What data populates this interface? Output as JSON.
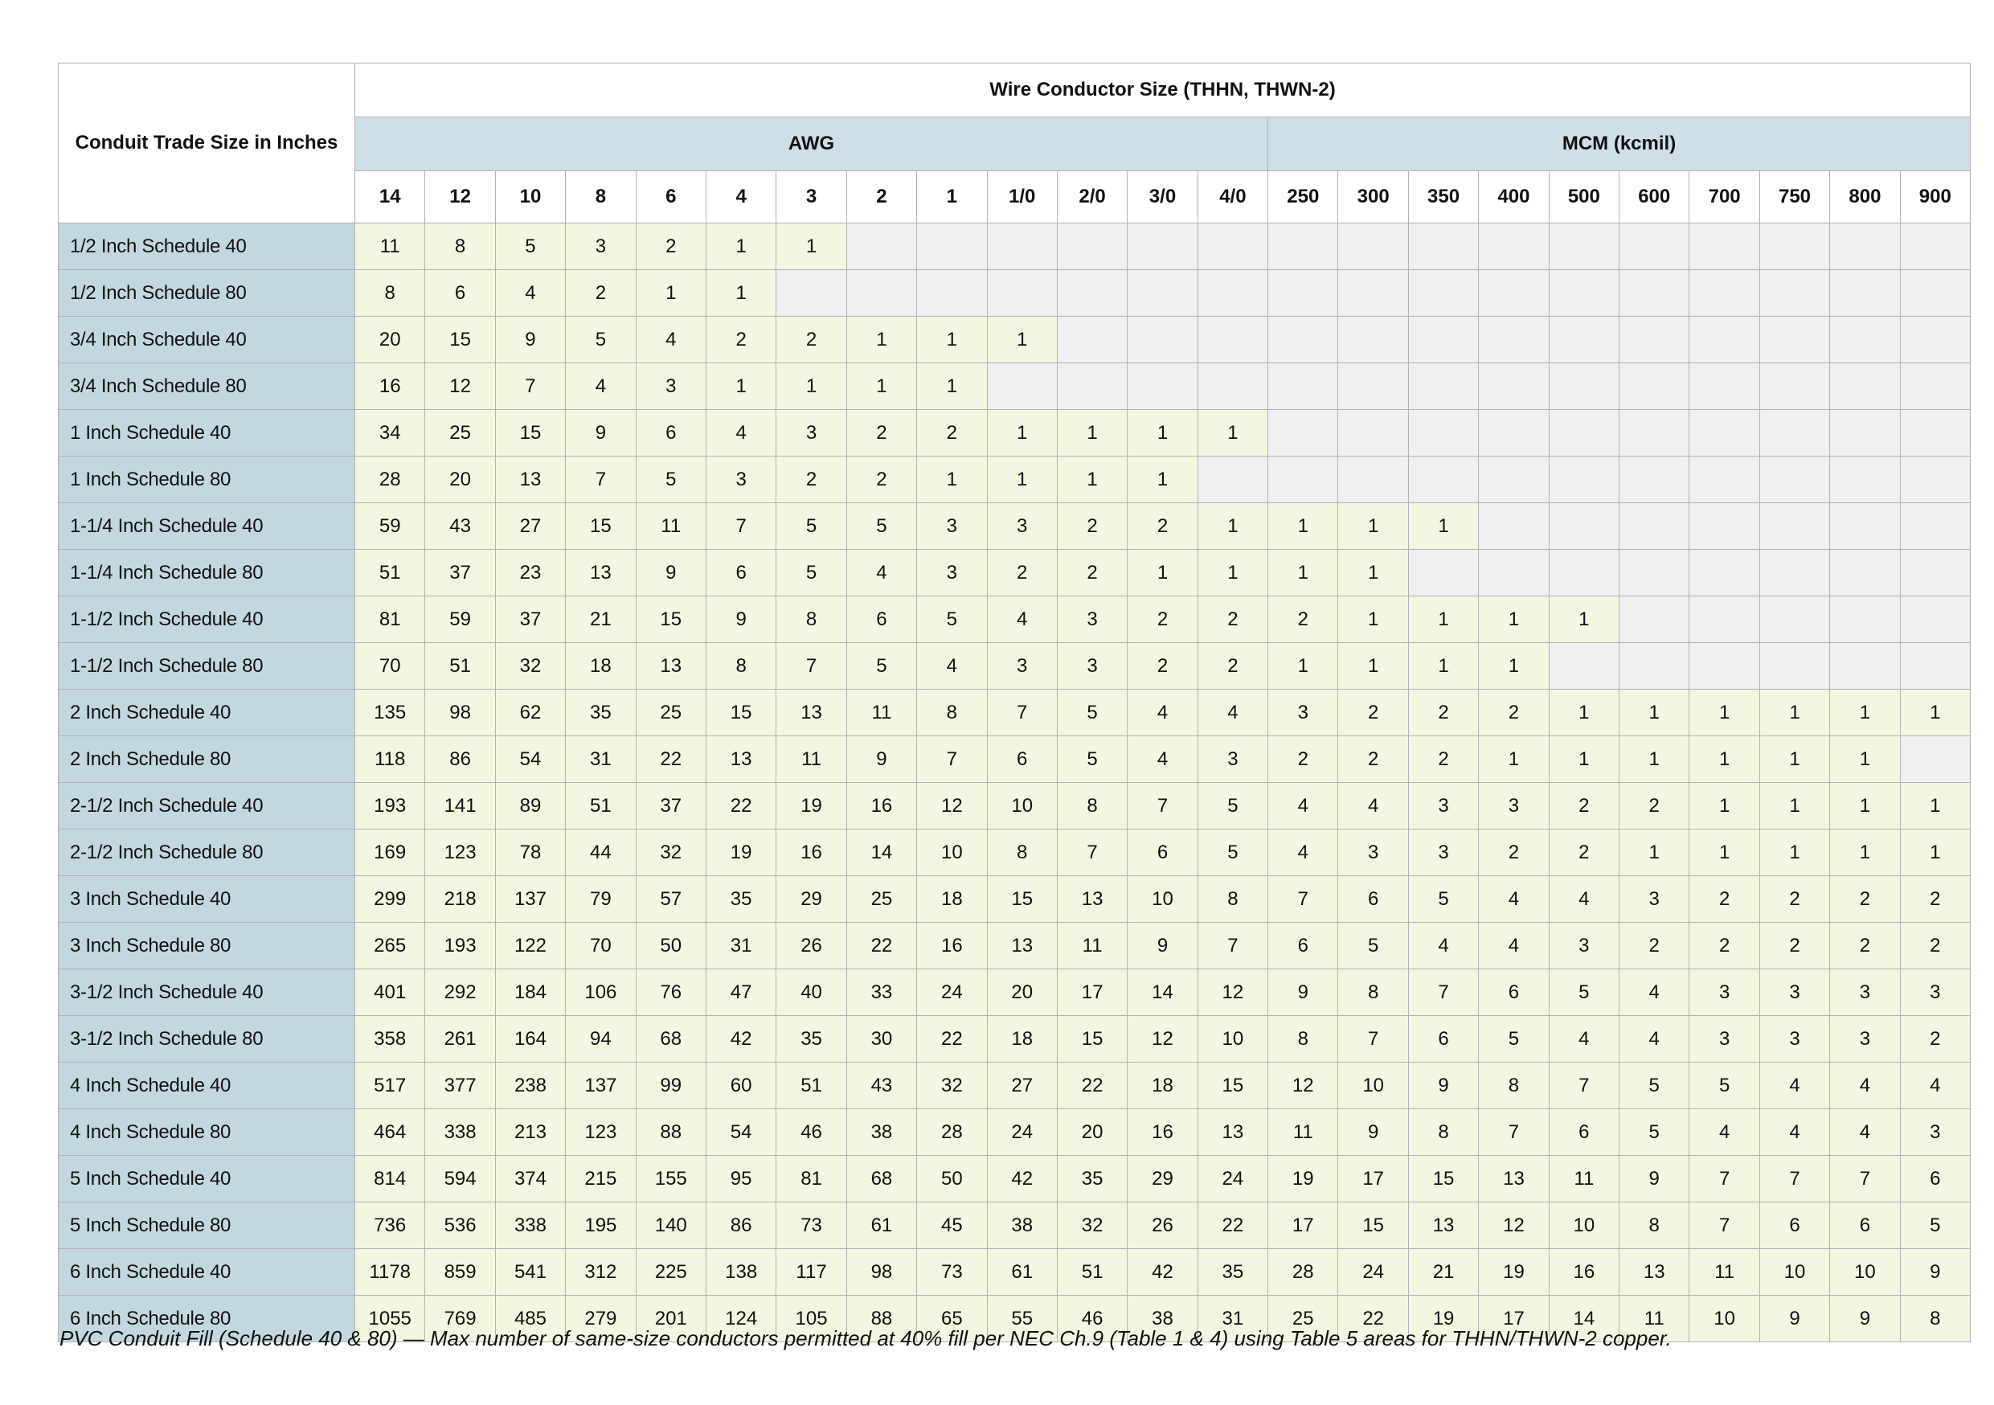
{
  "table": {
    "corner_header": "Conduit Trade Size in Inches",
    "top_header": "Wire Conductor Size (THHN, THWN-2)",
    "groups": [
      {
        "label": "AWG",
        "span": 13
      },
      {
        "label": "MCM (kcmil)",
        "span": 10
      }
    ],
    "size_headers": [
      "14",
      "12",
      "10",
      "8",
      "6",
      "4",
      "3",
      "2",
      "1",
      "1/0",
      "2/0",
      "3/0",
      "4/0",
      "250",
      "300",
      "350",
      "400",
      "500",
      "600",
      "700",
      "750",
      "800",
      "900"
    ],
    "rows": [
      {
        "label": "1/2 Inch Schedule 40",
        "values": [
          11,
          8,
          5,
          3,
          2,
          1,
          1,
          null,
          null,
          null,
          null,
          null,
          null,
          null,
          null,
          null,
          null,
          null,
          null,
          null,
          null,
          null,
          null
        ]
      },
      {
        "label": "1/2 Inch Schedule 80",
        "values": [
          8,
          6,
          4,
          2,
          1,
          1,
          null,
          null,
          null,
          null,
          null,
          null,
          null,
          null,
          null,
          null,
          null,
          null,
          null,
          null,
          null,
          null,
          null
        ]
      },
      {
        "label": "3/4 Inch Schedule 40",
        "values": [
          20,
          15,
          9,
          5,
          4,
          2,
          2,
          1,
          1,
          1,
          null,
          null,
          null,
          null,
          null,
          null,
          null,
          null,
          null,
          null,
          null,
          null,
          null
        ]
      },
      {
        "label": "3/4 Inch Schedule 80",
        "values": [
          16,
          12,
          7,
          4,
          3,
          1,
          1,
          1,
          1,
          null,
          null,
          null,
          null,
          null,
          null,
          null,
          null,
          null,
          null,
          null,
          null,
          null,
          null
        ]
      },
      {
        "label": "1 Inch Schedule 40",
        "values": [
          34,
          25,
          15,
          9,
          6,
          4,
          3,
          2,
          2,
          1,
          1,
          1,
          1,
          null,
          null,
          null,
          null,
          null,
          null,
          null,
          null,
          null,
          null
        ]
      },
      {
        "label": "1 Inch Schedule 80",
        "values": [
          28,
          20,
          13,
          7,
          5,
          3,
          2,
          2,
          1,
          1,
          1,
          1,
          null,
          null,
          null,
          null,
          null,
          null,
          null,
          null,
          null,
          null,
          null
        ]
      },
      {
        "label": "1-1/4 Inch Schedule 40",
        "values": [
          59,
          43,
          27,
          15,
          11,
          7,
          5,
          5,
          3,
          3,
          2,
          2,
          1,
          1,
          1,
          1,
          null,
          null,
          null,
          null,
          null,
          null,
          null
        ]
      },
      {
        "label": "1-1/4 Inch Schedule 80",
        "values": [
          51,
          37,
          23,
          13,
          9,
          6,
          5,
          4,
          3,
          2,
          2,
          1,
          1,
          1,
          1,
          null,
          null,
          null,
          null,
          null,
          null,
          null,
          null
        ]
      },
      {
        "label": "1-1/2 Inch Schedule 40",
        "values": [
          81,
          59,
          37,
          21,
          15,
          9,
          8,
          6,
          5,
          4,
          3,
          2,
          2,
          2,
          1,
          1,
          1,
          1,
          null,
          null,
          null,
          null,
          null
        ]
      },
      {
        "label": "1-1/2 Inch Schedule 80",
        "values": [
          70,
          51,
          32,
          18,
          13,
          8,
          7,
          5,
          4,
          3,
          3,
          2,
          2,
          1,
          1,
          1,
          1,
          null,
          null,
          null,
          null,
          null,
          null
        ]
      },
      {
        "label": "2 Inch Schedule 40",
        "values": [
          135,
          98,
          62,
          35,
          25,
          15,
          13,
          11,
          8,
          7,
          5,
          4,
          4,
          3,
          2,
          2,
          2,
          1,
          1,
          1,
          1,
          1,
          1
        ]
      },
      {
        "label": "2 Inch Schedule 80",
        "values": [
          118,
          86,
          54,
          31,
          22,
          13,
          11,
          9,
          7,
          6,
          5,
          4,
          3,
          2,
          2,
          2,
          1,
          1,
          1,
          1,
          1,
          1,
          null
        ]
      },
      {
        "label": "2-1/2 Inch Schedule 40",
        "values": [
          193,
          141,
          89,
          51,
          37,
          22,
          19,
          16,
          12,
          10,
          8,
          7,
          5,
          4,
          4,
          3,
          3,
          2,
          2,
          1,
          1,
          1,
          1
        ]
      },
      {
        "label": "2-1/2 Inch Schedule 80",
        "values": [
          169,
          123,
          78,
          44,
          32,
          19,
          16,
          14,
          10,
          8,
          7,
          6,
          5,
          4,
          3,
          3,
          2,
          2,
          1,
          1,
          1,
          1,
          1
        ]
      },
      {
        "label": "3 Inch Schedule 40",
        "values": [
          299,
          218,
          137,
          79,
          57,
          35,
          29,
          25,
          18,
          15,
          13,
          10,
          8,
          7,
          6,
          5,
          4,
          4,
          3,
          2,
          2,
          2,
          2
        ]
      },
      {
        "label": "3 Inch Schedule 80",
        "values": [
          265,
          193,
          122,
          70,
          50,
          31,
          26,
          22,
          16,
          13,
          11,
          9,
          7,
          6,
          5,
          4,
          4,
          3,
          2,
          2,
          2,
          2,
          2
        ]
      },
      {
        "label": "3-1/2 Inch Schedule 40",
        "values": [
          401,
          292,
          184,
          106,
          76,
          47,
          40,
          33,
          24,
          20,
          17,
          14,
          12,
          9,
          8,
          7,
          6,
          5,
          4,
          3,
          3,
          3,
          3
        ]
      },
      {
        "label": "3-1/2 Inch Schedule 80",
        "values": [
          358,
          261,
          164,
          94,
          68,
          42,
          35,
          30,
          22,
          18,
          15,
          12,
          10,
          8,
          7,
          6,
          5,
          4,
          4,
          3,
          3,
          3,
          2
        ]
      },
      {
        "label": "4 Inch Schedule 40",
        "values": [
          517,
          377,
          238,
          137,
          99,
          60,
          51,
          43,
          32,
          27,
          22,
          18,
          15,
          12,
          10,
          9,
          8,
          7,
          5,
          5,
          4,
          4,
          4
        ]
      },
      {
        "label": "4 Inch Schedule 80",
        "values": [
          464,
          338,
          213,
          123,
          88,
          54,
          46,
          38,
          28,
          24,
          20,
          16,
          13,
          11,
          9,
          8,
          7,
          6,
          5,
          4,
          4,
          4,
          3
        ]
      },
      {
        "label": "5 Inch Schedule 40",
        "values": [
          814,
          594,
          374,
          215,
          155,
          95,
          81,
          68,
          50,
          42,
          35,
          29,
          24,
          19,
          17,
          15,
          13,
          11,
          9,
          7,
          7,
          7,
          6
        ]
      },
      {
        "label": "5 Inch Schedule 80",
        "values": [
          736,
          536,
          338,
          195,
          140,
          86,
          73,
          61,
          45,
          38,
          32,
          26,
          22,
          17,
          15,
          13,
          12,
          10,
          8,
          7,
          6,
          6,
          5
        ]
      },
      {
        "label": "6 Inch Schedule 40",
        "values": [
          1178,
          859,
          541,
          312,
          225,
          138,
          117,
          98,
          73,
          61,
          51,
          42,
          35,
          28,
          24,
          21,
          19,
          16,
          13,
          11,
          10,
          10,
          9
        ]
      },
      {
        "label": "6 Inch Schedule 80",
        "values": [
          1055,
          769,
          485,
          279,
          201,
          124,
          105,
          88,
          65,
          55,
          46,
          38,
          31,
          25,
          22,
          19,
          17,
          14,
          11,
          10,
          9,
          9,
          8
        ]
      }
    ]
  },
  "caption": "PVC Conduit Fill (Schedule 40 & 80) — Max number of same-size conductors permitted at 40% fill per NEC Ch.9 (Table 1 & 4) using Table 5 areas for THHN/THWN-2 copper.",
  "colors": {
    "group_band": "#cfdfe5",
    "row_label": "#c3d7df",
    "filled_cell": "#f3f7e1",
    "empty_cell": "#f0f0f2",
    "grid_border": "#b2b2b4"
  }
}
